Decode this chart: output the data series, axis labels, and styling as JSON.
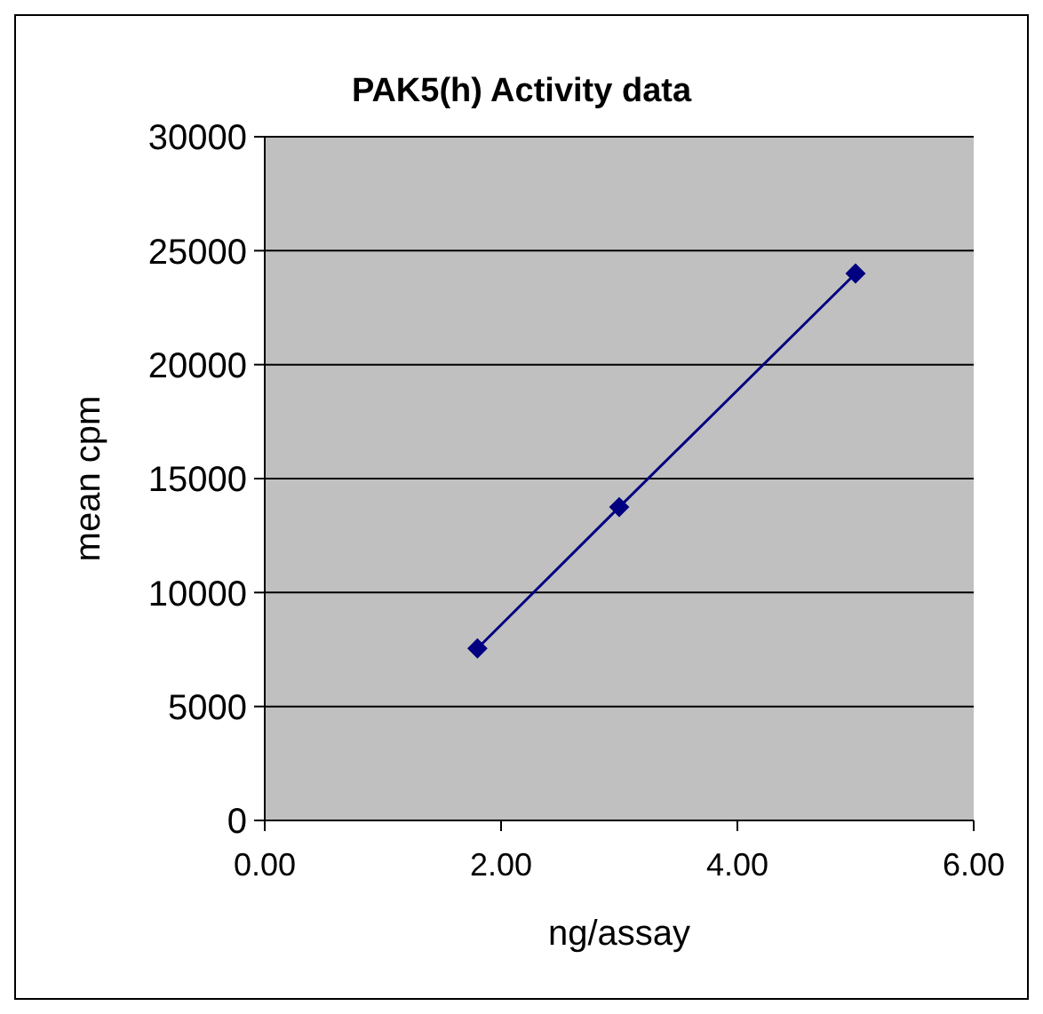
{
  "chart_data": {
    "type": "line",
    "title": "PAK5(h) Activity data",
    "xlabel": "ng/assay",
    "ylabel": "mean cpm",
    "x": [
      1.8,
      3,
      5
    ],
    "series": [
      {
        "color": "#000080",
        "values": [
          7550,
          13750,
          24000
        ]
      }
    ],
    "xlim": [
      0,
      6
    ],
    "xticks": [
      {
        "value": 0,
        "label": "0.00"
      },
      {
        "value": 2,
        "label": "2.00"
      },
      {
        "value": 4,
        "label": "4.00"
      },
      {
        "value": 6,
        "label": "6.00"
      }
    ],
    "ylim": [
      0,
      30000
    ],
    "yticks": [
      0,
      5000,
      10000,
      15000,
      20000,
      25000,
      30000
    ],
    "grid": "y",
    "legend": false,
    "marker": "diamond",
    "line_style": "solid"
  }
}
